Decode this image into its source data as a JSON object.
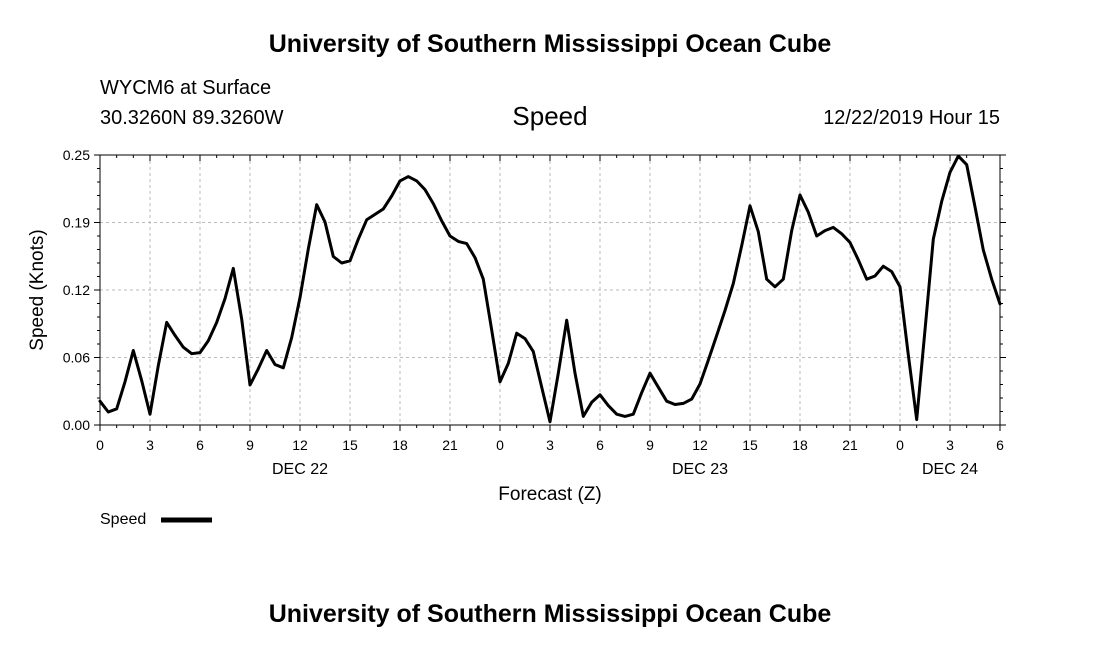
{
  "header": {
    "institution": "University of Southern Mississippi Ocean Cube",
    "station": "WYCM6 at Surface",
    "location": "30.3260N 89.3260W",
    "variable": "Speed",
    "timestamp": "12/22/2019 Hour 15"
  },
  "footer": {
    "institution": "University of Southern Mississippi Ocean Cube"
  },
  "chart_data": {
    "type": "line",
    "xlabel": "Forecast (Z)",
    "ylabel": "Speed (Knots)",
    "ylim": [
      0,
      0.25
    ],
    "yticks": [
      "0.00",
      "0.06",
      "0.12",
      "0.19",
      "0.25"
    ],
    "xlim": [
      0,
      54
    ],
    "xticks": [
      "0",
      "3",
      "6",
      "9",
      "12",
      "15",
      "18",
      "21",
      "0",
      "3",
      "6",
      "9",
      "12",
      "15",
      "18",
      "21",
      "0",
      "3",
      "6"
    ],
    "date_labels": [
      {
        "label": "DEC 22",
        "hour": 12
      },
      {
        "label": "DEC 23",
        "hour": 36
      },
      {
        "label": "DEC 24",
        "hour": 51
      }
    ],
    "grid": true,
    "legend": {
      "position": "bottom-left",
      "entries": [
        {
          "name": "Speed",
          "color": "#000000"
        }
      ]
    },
    "series": [
      {
        "name": "Speed",
        "color": "#000000",
        "x": [
          0,
          0.5,
          1,
          1.5,
          2,
          2.5,
          3,
          3.5,
          4,
          4.5,
          5,
          5.5,
          6,
          6.5,
          7,
          7.5,
          8,
          8.5,
          9,
          9.5,
          10,
          10.5,
          11,
          11.5,
          12,
          12.5,
          13,
          13.5,
          14,
          14.5,
          15,
          15.5,
          16,
          16.5,
          17,
          17.5,
          18,
          18.5,
          19,
          19.5,
          20,
          20.5,
          21,
          21.5,
          22,
          22.5,
          23,
          23.5,
          24,
          24.5,
          25,
          25.5,
          26,
          26.5,
          27,
          27.5,
          28,
          28.5,
          29,
          29.5,
          30,
          30.5,
          31,
          31.5,
          32,
          32.5,
          33,
          33.5,
          34,
          34.5,
          35,
          35.5,
          36,
          36.5,
          37,
          37.5,
          38,
          38.5,
          39,
          39.5,
          40,
          40.5,
          41,
          41.5,
          42,
          42.5,
          43,
          43.5,
          44,
          44.5,
          45,
          45.5,
          46,
          46.5,
          47,
          47.5,
          48,
          48.5,
          49,
          49.5,
          50,
          50.5,
          51,
          51.5,
          52,
          52.5,
          53,
          53.5,
          54
        ],
        "values": [
          0.022,
          0.012,
          0.015,
          0.04,
          0.069,
          0.041,
          0.01,
          0.055,
          0.095,
          0.083,
          0.072,
          0.066,
          0.067,
          0.078,
          0.095,
          0.117,
          0.145,
          0.098,
          0.037,
          0.052,
          0.069,
          0.056,
          0.053,
          0.081,
          0.118,
          0.163,
          0.204,
          0.188,
          0.156,
          0.15,
          0.152,
          0.172,
          0.19,
          0.195,
          0.2,
          0.212,
          0.226,
          0.23,
          0.226,
          0.218,
          0.205,
          0.189,
          0.175,
          0.17,
          0.168,
          0.155,
          0.135,
          0.088,
          0.04,
          0.057,
          0.085,
          0.08,
          0.068,
          0.035,
          0.003,
          0.048,
          0.097,
          0.048,
          0.008,
          0.021,
          0.028,
          0.018,
          0.01,
          0.008,
          0.01,
          0.03,
          0.048,
          0.035,
          0.022,
          0.019,
          0.02,
          0.024,
          0.038,
          0.06,
          0.083,
          0.106,
          0.131,
          0.166,
          0.203,
          0.179,
          0.135,
          0.128,
          0.135,
          0.18,
          0.213,
          0.197,
          0.175,
          0.18,
          0.183,
          0.177,
          0.169,
          0.153,
          0.135,
          0.138,
          0.147,
          0.142,
          0.128,
          0.065,
          0.005,
          0.088,
          0.172,
          0.207,
          0.234,
          0.249,
          0.241,
          0.202,
          0.162,
          0.135,
          0.112
        ]
      }
    ]
  }
}
